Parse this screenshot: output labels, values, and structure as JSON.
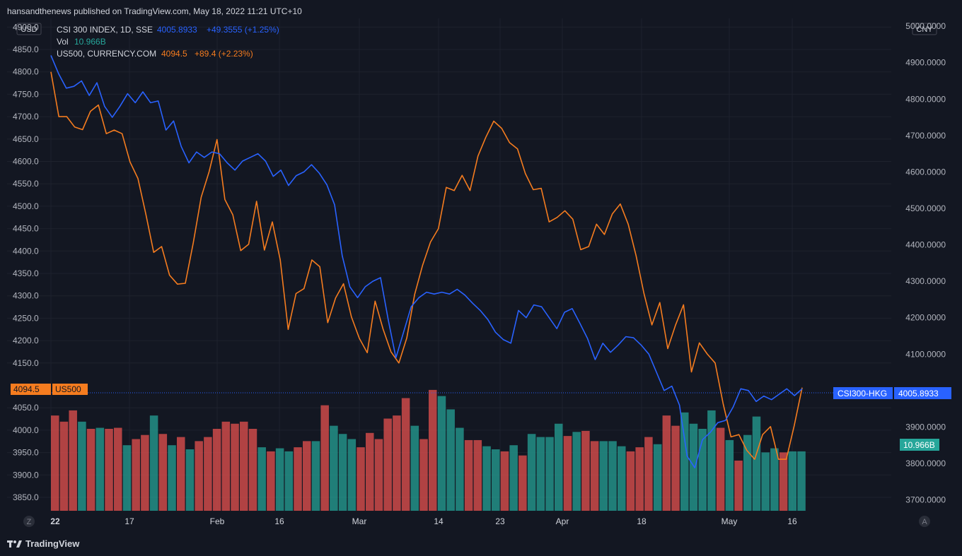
{
  "header": {
    "published": "hansandthenews published on TradingView.com, May 18, 2022 11:21 UTC+10"
  },
  "footer": {
    "logo_text": "TradingView"
  },
  "legend": {
    "line1_name": "CSI 300 INDEX, 1D, SSE",
    "line1_value": "4005.8933",
    "line1_change": "+49.3555 (+1.25%)",
    "line2_name": "Vol",
    "line2_value": "10.966B",
    "line3_name": "US500, CURRENCY.COM",
    "line3_value": "4094.5",
    "line3_change": "+89.4 (+2.23%)"
  },
  "axes": {
    "left_currency": "USD",
    "right_currency": "CNY",
    "left_ticks": [
      "4900.0",
      "4850.0",
      "4800.0",
      "4750.0",
      "4700.0",
      "4650.0",
      "4600.0",
      "4550.0",
      "4500.0",
      "4450.0",
      "4400.0",
      "4350.0",
      "4300.0",
      "4250.0",
      "4200.0",
      "4150.0",
      "4050.0",
      "4000.0",
      "3950.0",
      "3900.0",
      "3850.0"
    ],
    "right_ticks": [
      "5000.0000",
      "4900.0000",
      "4800.0000",
      "4700.0000",
      "4600.0000",
      "4500.0000",
      "4400.0000",
      "4300.0000",
      "4200.0000",
      "4100.0000",
      "3900.0000",
      "3800.0000",
      "3700.0000"
    ],
    "x_ticks": [
      "22",
      "17",
      "Feb",
      "16",
      "Mar",
      "14",
      "23",
      "Apr",
      "18",
      "May",
      "16"
    ],
    "z_label": "Z",
    "a_label": "A"
  },
  "badges": {
    "us500_value": "4094.5",
    "us500_name": "US500",
    "csi_name": "CSI300-HKG",
    "csi_value": "4005.8933",
    "vol_value": "10.966B"
  },
  "colors": {
    "background": "#131722",
    "csi_line": "#2962ff",
    "us500_line": "#f57c1f",
    "vol_up": "#26a69a",
    "vol_down": "#ef5350",
    "text": "#d1d4dc",
    "grid": "#1e222d"
  },
  "chart_data": {
    "type": "line",
    "x_range": [
      "2022-01-04",
      "2022-05-18"
    ],
    "series": [
      {
        "name": "CSI 300 INDEX, 1D, SSE",
        "axis": "right",
        "unit": "CNY",
        "values": [
          4920,
          4870,
          4830,
          4835,
          4850,
          4810,
          4845,
          4780,
          4750,
          4780,
          4815,
          4790,
          4820,
          4790,
          4795,
          4715,
          4740,
          4670,
          4625,
          4655,
          4640,
          4655,
          4650,
          4625,
          4605,
          4630,
          4640,
          4650,
          4630,
          4588,
          4605,
          4563,
          4590,
          4600,
          4620,
          4597,
          4565,
          4510,
          4370,
          4285,
          4255,
          4285,
          4300,
          4310,
          4195,
          4090,
          4160,
          4230,
          4255,
          4270,
          4265,
          4270,
          4265,
          4278,
          4262,
          4240,
          4220,
          4195,
          4160,
          4140,
          4130,
          4220,
          4200,
          4235,
          4230,
          4200,
          4170,
          4215,
          4225,
          4185,
          4143,
          4085,
          4130,
          4105,
          4125,
          4148,
          4145,
          4125,
          4100,
          4050,
          4000,
          4012,
          3960,
          3820,
          3788,
          3865,
          3885,
          3912,
          3918,
          3955,
          4005,
          4000,
          3970,
          3985,
          3975,
          3990,
          4005,
          3986,
          4005
        ]
      },
      {
        "name": "US500, CURRENCY.COM",
        "axis": "left",
        "unit": "USD",
        "values": [
          4800,
          4700,
          4700,
          4677,
          4671,
          4712,
          4726,
          4662,
          4670,
          4662,
          4599,
          4562,
          4483,
          4397,
          4410,
          4346,
          4326,
          4328,
          4418,
          4520,
          4577,
          4649,
          4515,
          4481,
          4401,
          4415,
          4511,
          4402,
          4465,
          4380,
          4225,
          4305,
          4316,
          4380,
          4365,
          4240,
          4295,
          4327,
          4253,
          4205,
          4173,
          4288,
          4226,
          4175,
          4150,
          4206,
          4303,
          4368,
          4420,
          4450,
          4542,
          4535,
          4569,
          4535,
          4612,
          4654,
          4690,
          4674,
          4642,
          4628,
          4573,
          4537,
          4540,
          4465,
          4475,
          4490,
          4471,
          4403,
          4410,
          4460,
          4437,
          4483,
          4505,
          4460,
          4390,
          4305,
          4235,
          4285,
          4182,
          4235,
          4280,
          4130,
          4195,
          4170,
          4150,
          4060,
          3985,
          3990,
          3955,
          3935,
          3990,
          4008,
          3935,
          3935,
          4010,
          4095
        ]
      }
    ],
    "volume": {
      "name": "Vol",
      "last": "10.966B",
      "bars": [
        {
          "h": 0.93,
          "c": "down"
        },
        {
          "h": 0.87,
          "c": "down"
        },
        {
          "h": 0.98,
          "c": "down"
        },
        {
          "h": 0.87,
          "c": "up"
        },
        {
          "h": 0.8,
          "c": "down"
        },
        {
          "h": 0.81,
          "c": "up"
        },
        {
          "h": 0.8,
          "c": "down"
        },
        {
          "h": 0.81,
          "c": "down"
        },
        {
          "h": 0.64,
          "c": "up"
        },
        {
          "h": 0.7,
          "c": "down"
        },
        {
          "h": 0.74,
          "c": "down"
        },
        {
          "h": 0.93,
          "c": "up"
        },
        {
          "h": 0.75,
          "c": "down"
        },
        {
          "h": 0.64,
          "c": "up"
        },
        {
          "h": 0.72,
          "c": "down"
        },
        {
          "h": 0.6,
          "c": "up"
        },
        {
          "h": 0.68,
          "c": "down"
        },
        {
          "h": 0.72,
          "c": "down"
        },
        {
          "h": 0.8,
          "c": "down"
        },
        {
          "h": 0.87,
          "c": "down"
        },
        {
          "h": 0.85,
          "c": "down"
        },
        {
          "h": 0.87,
          "c": "down"
        },
        {
          "h": 0.8,
          "c": "down"
        },
        {
          "h": 0.62,
          "c": "up"
        },
        {
          "h": 0.58,
          "c": "down"
        },
        {
          "h": 0.61,
          "c": "up"
        },
        {
          "h": 0.58,
          "c": "up"
        },
        {
          "h": 0.62,
          "c": "down"
        },
        {
          "h": 0.68,
          "c": "down"
        },
        {
          "h": 0.68,
          "c": "up"
        },
        {
          "h": 1.03,
          "c": "down"
        },
        {
          "h": 0.83,
          "c": "up"
        },
        {
          "h": 0.75,
          "c": "up"
        },
        {
          "h": 0.7,
          "c": "up"
        },
        {
          "h": 0.62,
          "c": "down"
        },
        {
          "h": 0.76,
          "c": "down"
        },
        {
          "h": 0.7,
          "c": "down"
        },
        {
          "h": 0.9,
          "c": "down"
        },
        {
          "h": 0.93,
          "c": "down"
        },
        {
          "h": 1.1,
          "c": "down"
        },
        {
          "h": 0.83,
          "c": "up"
        },
        {
          "h": 0.7,
          "c": "down"
        },
        {
          "h": 1.18,
          "c": "down"
        },
        {
          "h": 1.12,
          "c": "up"
        },
        {
          "h": 0.99,
          "c": "up"
        },
        {
          "h": 0.81,
          "c": "up"
        },
        {
          "h": 0.69,
          "c": "down"
        },
        {
          "h": 0.69,
          "c": "down"
        },
        {
          "h": 0.63,
          "c": "up"
        },
        {
          "h": 0.6,
          "c": "up"
        },
        {
          "h": 0.58,
          "c": "down"
        },
        {
          "h": 0.64,
          "c": "up"
        },
        {
          "h": 0.54,
          "c": "down"
        },
        {
          "h": 0.75,
          "c": "up"
        },
        {
          "h": 0.72,
          "c": "up"
        },
        {
          "h": 0.72,
          "c": "up"
        },
        {
          "h": 0.85,
          "c": "up"
        },
        {
          "h": 0.73,
          "c": "down"
        },
        {
          "h": 0.77,
          "c": "up"
        },
        {
          "h": 0.78,
          "c": "down"
        },
        {
          "h": 0.68,
          "c": "down"
        },
        {
          "h": 0.68,
          "c": "up"
        },
        {
          "h": 0.68,
          "c": "up"
        },
        {
          "h": 0.63,
          "c": "up"
        },
        {
          "h": 0.58,
          "c": "down"
        },
        {
          "h": 0.62,
          "c": "down"
        },
        {
          "h": 0.72,
          "c": "down"
        },
        {
          "h": 0.65,
          "c": "up"
        },
        {
          "h": 0.93,
          "c": "down"
        },
        {
          "h": 0.83,
          "c": "down"
        },
        {
          "h": 0.96,
          "c": "up"
        },
        {
          "h": 0.85,
          "c": "up"
        },
        {
          "h": 0.8,
          "c": "up"
        },
        {
          "h": 0.98,
          "c": "up"
        },
        {
          "h": 0.81,
          "c": "down"
        },
        {
          "h": 0.69,
          "c": "up"
        },
        {
          "h": 0.49,
          "c": "down"
        },
        {
          "h": 0.74,
          "c": "up"
        },
        {
          "h": 0.92,
          "c": "up"
        },
        {
          "h": 0.57,
          "c": "up"
        },
        {
          "h": 0.61,
          "c": "up"
        },
        {
          "h": 0.57,
          "c": "down"
        },
        {
          "h": 0.58,
          "c": "up"
        },
        {
          "h": 0.58,
          "c": "up"
        }
      ]
    },
    "y_left_range": [
      3820,
      4910
    ],
    "y_right_range": [
      3670,
      5010
    ],
    "grid": true
  }
}
